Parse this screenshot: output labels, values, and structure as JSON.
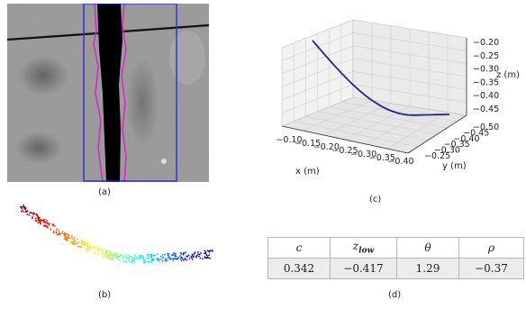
{
  "captions": {
    "a": "(a)",
    "b": "(b)",
    "c": "(c)",
    "d": "(d)"
  },
  "panel_a": {
    "kind": "photo with segmented crack region"
  },
  "panel_b": {
    "kind": "colored point cloud"
  },
  "colors": {
    "bounding_box": "#2a2ad8",
    "crack_contour": "#e020c8",
    "crack_fill": "#000000",
    "fit_curve": "#1e2a8a"
  },
  "chart_data": {
    "type": "line",
    "projection": "3d",
    "xlabel": "x (m)",
    "ylabel": "y (m)",
    "zlabel": "z (m)",
    "x_ticks": [
      "−0.10",
      "−0.15",
      "−0.20",
      "−0.25",
      "−0.30",
      "−0.35",
      "−0.40"
    ],
    "y_ticks": [
      "−0.25",
      "−0.30",
      "−0.35",
      "−0.40",
      "−0.45",
      "−0.50"
    ],
    "z_ticks": [
      "−0.20",
      "−0.25",
      "−0.30",
      "−0.35",
      "−0.40",
      "−0.45"
    ],
    "grid": true
  },
  "table": {
    "headers": [
      "c",
      "z",
      "θ",
      "ρ"
    ],
    "header_subscript": [
      "",
      "low",
      "",
      ""
    ],
    "values": [
      "0.342",
      "−0.417",
      "1.29",
      "−0.37"
    ]
  }
}
